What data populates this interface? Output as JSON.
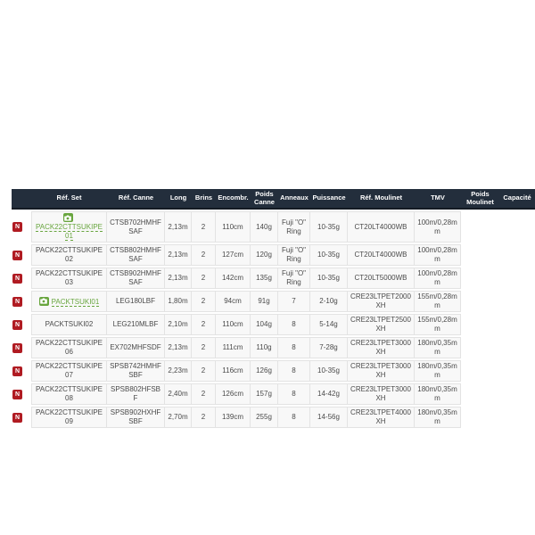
{
  "page": {
    "background": "#ffffff"
  },
  "table": {
    "badge_letter": "N",
    "badge_meaning": "new-product-badge",
    "photo_icon": "camera-icon",
    "columns": [
      {
        "key": "badge",
        "label": ""
      },
      {
        "key": "ref_set",
        "label": "Réf. Set"
      },
      {
        "key": "ref_canne",
        "label": "Réf. Canne"
      },
      {
        "key": "long",
        "label": "Long"
      },
      {
        "key": "brins",
        "label": "Brins"
      },
      {
        "key": "encombr",
        "label": "Encombr."
      },
      {
        "key": "poids_canne",
        "label": "Poids Canne"
      },
      {
        "key": "anneaux",
        "label": "Anneaux"
      },
      {
        "key": "puissance",
        "label": "Puissance"
      },
      {
        "key": "ref_moulinet",
        "label": "Réf. Moulinet"
      },
      {
        "key": "tmv",
        "label": "TMV"
      },
      {
        "key": "poids_moulinet",
        "label": "Poids Moulinet"
      },
      {
        "key": "capacite",
        "label": "Capacité"
      }
    ],
    "rows": [
      {
        "photo": true,
        "link": true,
        "ref_set": "PACK22CTTSUKIPE01",
        "ref_canne": "CTSB702HMHFSAF",
        "long": "2,13m",
        "brins": "2",
        "encombr": "110cm",
        "poids_canne": "140g",
        "anneaux": "Fuji \"O\" Ring",
        "puissance": "10-35g",
        "ref_moulinet": "CT20LT4000WB",
        "tmv": "100m/0,28mm",
        "poids_moulinet": "",
        "capacite": ""
      },
      {
        "photo": false,
        "link": false,
        "ref_set": "PACK22CTTSUKIPE02",
        "ref_canne": "CTSB802HMHFSAF",
        "long": "2,13m",
        "brins": "2",
        "encombr": "127cm",
        "poids_canne": "120g",
        "anneaux": "Fuji \"O\" Ring",
        "puissance": "10-35g",
        "ref_moulinet": "CT20LT4000WB",
        "tmv": "100m/0,28mm",
        "poids_moulinet": "",
        "capacite": ""
      },
      {
        "photo": false,
        "link": false,
        "ref_set": "PACK22CTTSUKIPE03",
        "ref_canne": "CTSB902HMHFSAF",
        "long": "2,13m",
        "brins": "2",
        "encombr": "142cm",
        "poids_canne": "135g",
        "anneaux": "Fuji \"O\" Ring",
        "puissance": "10-35g",
        "ref_moulinet": "CT20LT5000WB",
        "tmv": "100m/0,28mm",
        "poids_moulinet": "",
        "capacite": ""
      },
      {
        "photo": true,
        "link": true,
        "ref_set": "PACKTSUKI01",
        "ref_canne": "LEG180LBF",
        "long": "1,80m",
        "brins": "2",
        "encombr": "94cm",
        "poids_canne": "91g",
        "anneaux": "7",
        "puissance": "2-10g",
        "ref_moulinet": "CRE23LTPET2000XH",
        "tmv": "155m/0,28mm",
        "poids_moulinet": "",
        "capacite": ""
      },
      {
        "photo": false,
        "link": false,
        "ref_set": "PACKTSUKI02",
        "ref_canne": "LEG210MLBF",
        "long": "2,10m",
        "brins": "2",
        "encombr": "110cm",
        "poids_canne": "104g",
        "anneaux": "8",
        "puissance": "5-14g",
        "ref_moulinet": "CRE23LTPET2500XH",
        "tmv": "155m/0,28mm",
        "poids_moulinet": "",
        "capacite": ""
      },
      {
        "photo": false,
        "link": false,
        "ref_set": "PACK22CTTSUKIPE06",
        "ref_canne": "EX702MHFSDF",
        "long": "2,13m",
        "brins": "2",
        "encombr": "111cm",
        "poids_canne": "110g",
        "anneaux": "8",
        "puissance": "7-28g",
        "ref_moulinet": "CRE23LTPET3000XH",
        "tmv": "180m/0,35mm",
        "poids_moulinet": "",
        "capacite": ""
      },
      {
        "photo": false,
        "link": false,
        "ref_set": "PACK22CTTSUKIPE07",
        "ref_canne": "SPSB742HMHFSBF",
        "long": "2,23m",
        "brins": "2",
        "encombr": "116cm",
        "poids_canne": "126g",
        "anneaux": "8",
        "puissance": "10-35g",
        "ref_moulinet": "CRE23LTPET3000XH",
        "tmv": "180m/0,35mm",
        "poids_moulinet": "",
        "capacite": ""
      },
      {
        "photo": false,
        "link": false,
        "ref_set": "PACK22CTTSUKIPE08",
        "ref_canne": "SPSB802HFSBF",
        "long": "2,40m",
        "brins": "2",
        "encombr": "126cm",
        "poids_canne": "157g",
        "anneaux": "8",
        "puissance": "14-42g",
        "ref_moulinet": "CRE23LTPET3000XH",
        "tmv": "180m/0,35mm",
        "poids_moulinet": "",
        "capacite": ""
      },
      {
        "photo": false,
        "link": false,
        "ref_set": "PACK22CTTSUKIPE09",
        "ref_canne": "SPSB902HXHFSBF",
        "long": "2,70m",
        "brins": "2",
        "encombr": "139cm",
        "poids_canne": "255g",
        "anneaux": "8",
        "puissance": "14-56g",
        "ref_moulinet": "CRE23LTPET4000XH",
        "tmv": "180m/0,35mm",
        "poids_moulinet": "",
        "capacite": ""
      }
    ],
    "colors": {
      "header_bg": "#232e3c",
      "header_text": "#ffffff",
      "badge_red": "#b01b22",
      "link_green": "#68a53e",
      "cell_bg": "#f8f8f8",
      "cell_border": "#e3e3e3",
      "body_text": "#4a4a4a"
    }
  }
}
